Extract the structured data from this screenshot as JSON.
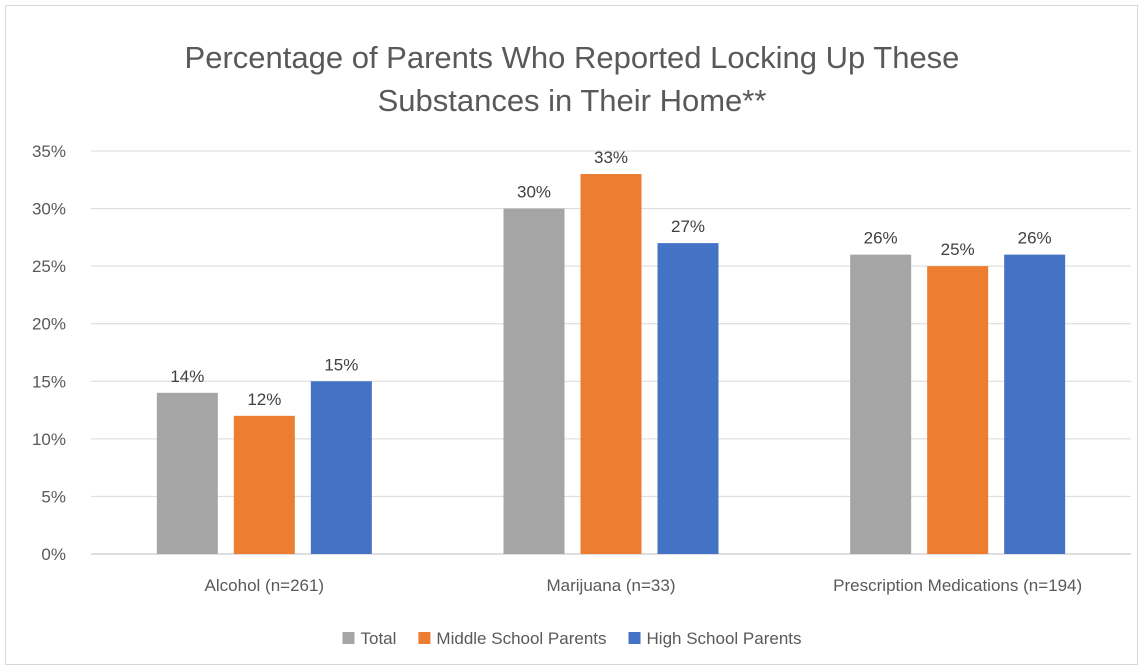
{
  "chart_data": {
    "type": "bar",
    "title_lines": [
      "Percentage of Parents Who Reported Locking Up These",
      "Substances in Their Home**"
    ],
    "categories": [
      "Alcohol (n=261)",
      "Marijuana (n=33)",
      "Prescription Medications (n=194)"
    ],
    "series": [
      {
        "name": "Total",
        "color": "#a5a5a5",
        "values": [
          14,
          30,
          26
        ]
      },
      {
        "name": "Middle School Parents",
        "color": "#ed7d31",
        "values": [
          12,
          33,
          25
        ]
      },
      {
        "name": "High School Parents",
        "color": "#4472c4",
        "values": [
          15,
          27,
          26
        ]
      }
    ],
    "ylim": [
      0,
      35
    ],
    "ytick_step": 5,
    "ytick_suffix": "%",
    "value_suffix": "%",
    "grid": true,
    "legend_position": "bottom"
  }
}
